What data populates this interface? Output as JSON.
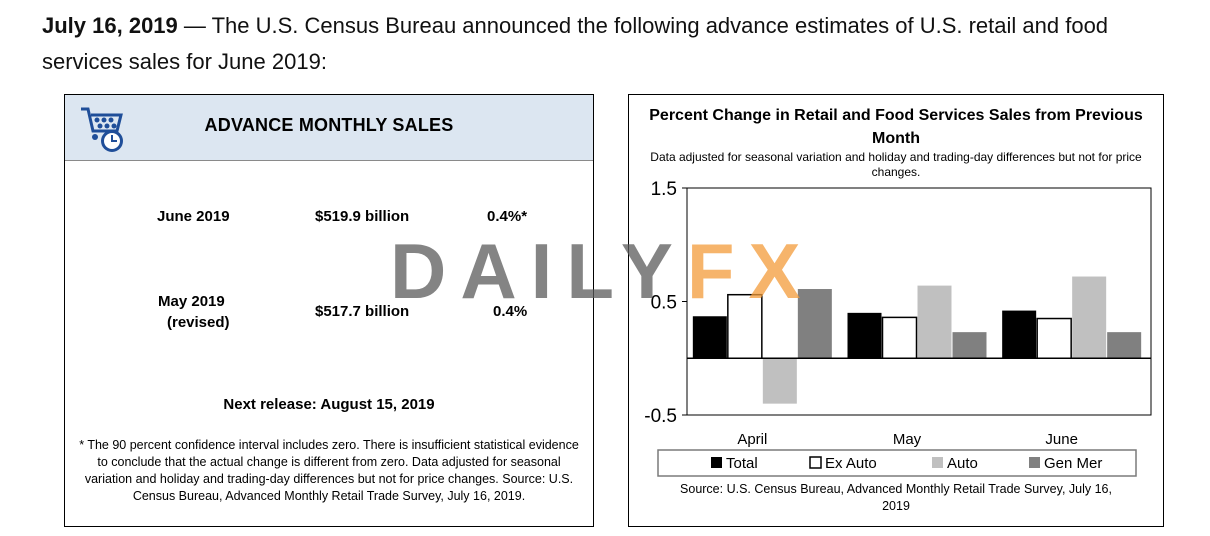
{
  "headline": {
    "date": "July 16, 2019",
    "text": " — The U.S. Census Bureau announced the following advance estimates of U.S. retail and food services sales for June 2019:"
  },
  "left_panel": {
    "title": "ADVANCE MONTHLY SALES",
    "icon": "shopping-cart-clock-icon",
    "rows": [
      {
        "month": "June 2019",
        "month_note": "",
        "amount": "$519.9 billion",
        "change": "0.4%*"
      },
      {
        "month": "May 2019",
        "month_note": "(revised)",
        "amount": "$517.7 billion",
        "change": "0.4%"
      }
    ],
    "next_release": "Next release: August 15, 2019",
    "footnote": "* The 90 percent confidence interval includes zero. There is insufficient statistical evidence to conclude that the actual change is different from zero. Data adjusted for seasonal variation and holiday and trading-day differences but not for price changes. Source: U.S. Census Bureau, Advanced Monthly Retail Trade Survey, July 16, 2019."
  },
  "watermark": {
    "part1": "DAILY",
    "part2": "FX"
  },
  "chart_data": {
    "type": "bar",
    "title": "Percent Change in Retail and Food Services Sales from Previous Month",
    "subtitle": "Data adjusted for seasonal variation and holiday and trading-day differences but not for price changes.",
    "categories": [
      "April",
      "May",
      "June"
    ],
    "ylim": [
      -0.5,
      1.5
    ],
    "yticks": [
      {
        "value": 1.5,
        "label": "1.5"
      },
      {
        "value": 0.5,
        "label": "0.5"
      },
      {
        "value": -0.5,
        "label": "-0.5"
      }
    ],
    "grid": false,
    "legend_position": "bottom",
    "series": [
      {
        "name": "Total",
        "color": "#000000",
        "values": [
          0.37,
          0.4,
          0.42
        ]
      },
      {
        "name": "Ex Auto",
        "color": "#ffffff",
        "values": [
          0.56,
          0.36,
          0.35
        ]
      },
      {
        "name": "Auto",
        "color": "#c0c0c0",
        "values": [
          -0.4,
          0.64,
          0.72
        ]
      },
      {
        "name": "Gen Mer",
        "color": "#808080",
        "values": [
          0.61,
          0.23,
          0.23
        ]
      }
    ],
    "source": "Source: U.S. Census Bureau, Advanced Monthly Retail Trade Survey, July 16, 2019"
  }
}
